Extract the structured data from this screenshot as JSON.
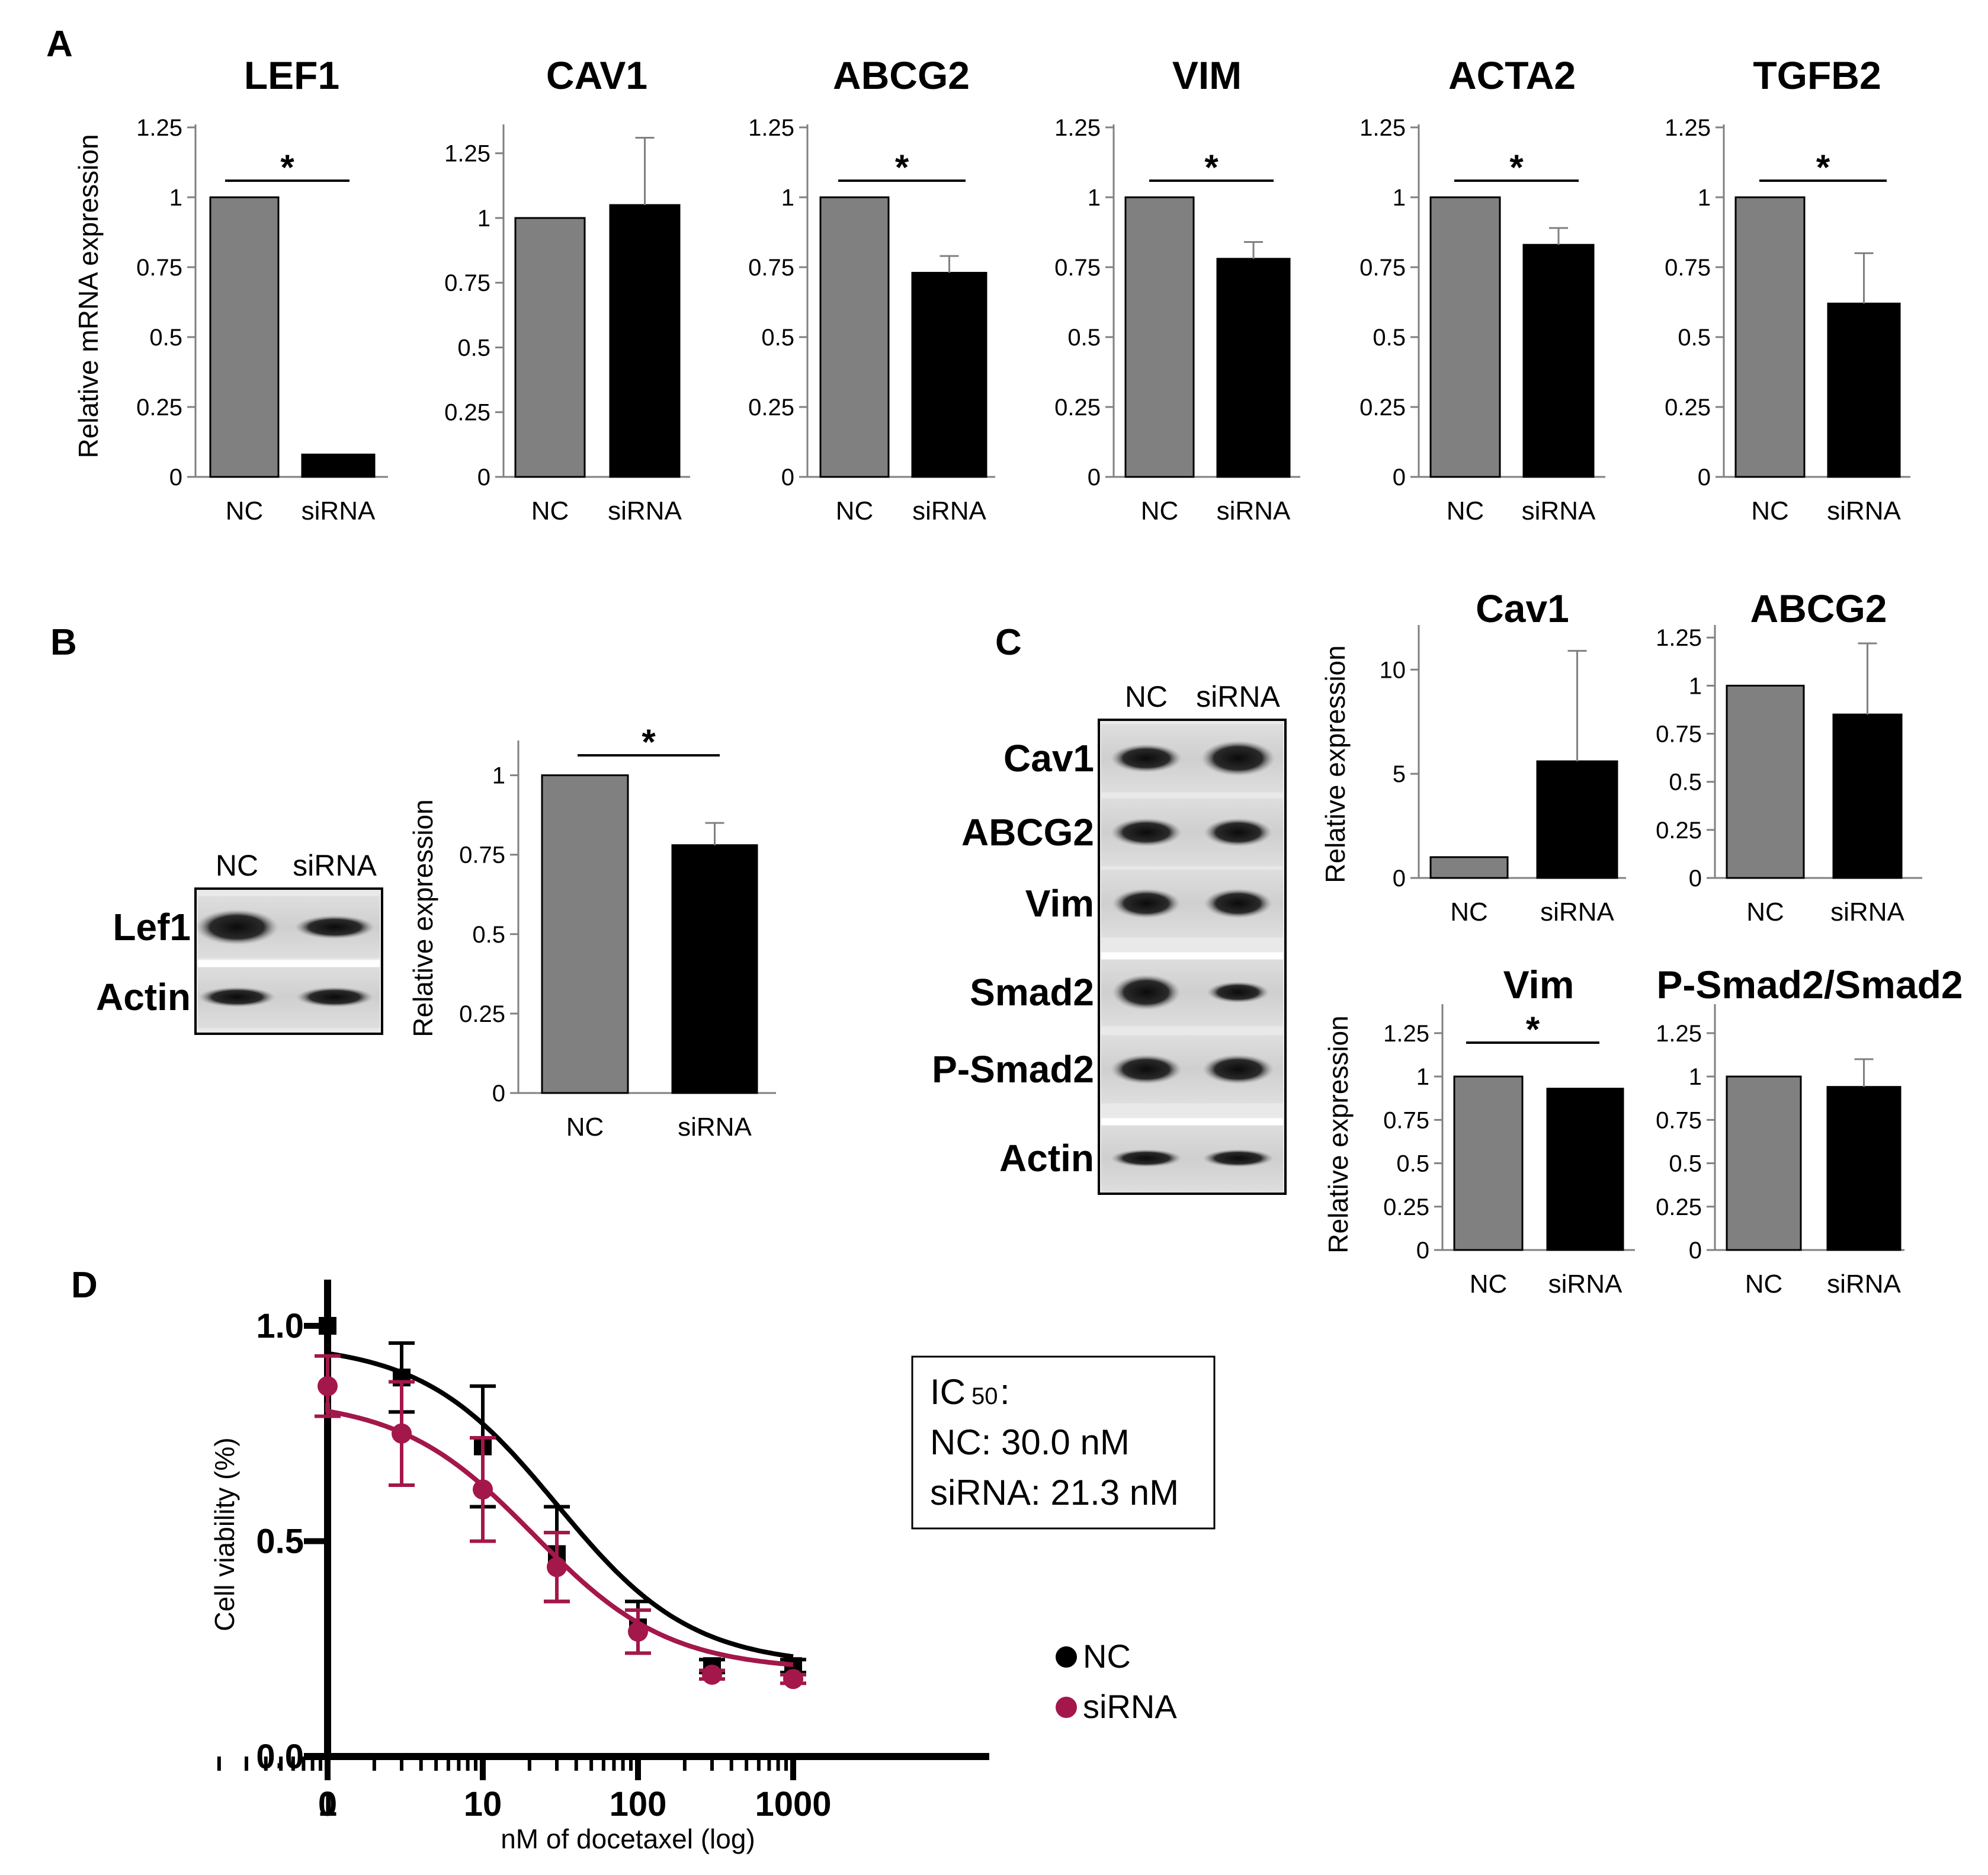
{
  "panels": {
    "A": {
      "letter": "A"
    },
    "B": {
      "letter": "B"
    },
    "C": {
      "letter": "C"
    },
    "D": {
      "letter": "D"
    }
  },
  "colors": {
    "nc": "#808080",
    "sirna": "#000000",
    "sirna_curve": "#a3174a"
  },
  "chart_data": [
    {
      "id": "A-LEF1",
      "panel": "A",
      "type": "bar",
      "title": "LEF1",
      "ylabel": "Relative mRNA expression",
      "categories": [
        "NC",
        "siRNA"
      ],
      "values": [
        1,
        0.08
      ],
      "errors": [
        0,
        0.005
      ],
      "ylim": [
        0,
        1.25
      ],
      "yticks": [
        0,
        0.25,
        0.5,
        0.75,
        1,
        1.25
      ],
      "ytick_labels": [
        "0",
        "0.25",
        "0.5",
        "0.75",
        "1",
        "1.25"
      ],
      "significance": "*"
    },
    {
      "id": "A-CAV1",
      "panel": "A",
      "type": "bar",
      "title": "CAV1",
      "ylabel": "",
      "categories": [
        "NC",
        "siRNA"
      ],
      "values": [
        1,
        1.05
      ],
      "errors": [
        0,
        0.26
      ],
      "ylim": [
        0,
        1.35
      ],
      "yticks": [
        0,
        0.25,
        0.5,
        0.75,
        1,
        1.25
      ],
      "ytick_labels": [
        "0",
        "0.25",
        "0.5",
        "0.75",
        "1",
        "1.25"
      ],
      "significance": ""
    },
    {
      "id": "A-ABCG2",
      "panel": "A",
      "type": "bar",
      "title": "ABCG2",
      "ylabel": "",
      "categories": [
        "NC",
        "siRNA"
      ],
      "values": [
        1,
        0.73
      ],
      "errors": [
        0,
        0.06
      ],
      "ylim": [
        0,
        1.25
      ],
      "yticks": [
        0,
        0.25,
        0.5,
        0.75,
        1,
        1.25
      ],
      "ytick_labels": [
        "0",
        "0.25",
        "0.5",
        "0.75",
        "1",
        "1.25"
      ],
      "significance": "*"
    },
    {
      "id": "A-VIM",
      "panel": "A",
      "type": "bar",
      "title": "VIM",
      "ylabel": "",
      "categories": [
        "NC",
        "siRNA"
      ],
      "values": [
        1,
        0.78
      ],
      "errors": [
        0,
        0.06
      ],
      "ylim": [
        0,
        1.25
      ],
      "yticks": [
        0,
        0.25,
        0.5,
        0.75,
        1,
        1.25
      ],
      "ytick_labels": [
        "0",
        "0.25",
        "0.5",
        "0.75",
        "1",
        "1.25"
      ],
      "significance": "*"
    },
    {
      "id": "A-ACTA2",
      "panel": "A",
      "type": "bar",
      "title": "ACTA2",
      "ylabel": "",
      "categories": [
        "NC",
        "siRNA"
      ],
      "values": [
        1,
        0.83
      ],
      "errors": [
        0,
        0.06
      ],
      "ylim": [
        0,
        1.25
      ],
      "yticks": [
        0,
        0.25,
        0.5,
        0.75,
        1,
        1.25
      ],
      "ytick_labels": [
        "0",
        "0.25",
        "0.5",
        "0.75",
        "1",
        "1.25"
      ],
      "significance": "*"
    },
    {
      "id": "A-TGFB2",
      "panel": "A",
      "type": "bar",
      "title": "TGFB2",
      "ylabel": "",
      "categories": [
        "NC",
        "siRNA"
      ],
      "values": [
        1,
        0.62
      ],
      "errors": [
        0,
        0.18
      ],
      "ylim": [
        0,
        1.25
      ],
      "yticks": [
        0,
        0.25,
        0.5,
        0.75,
        1,
        1.25
      ],
      "ytick_labels": [
        "0",
        "0.25",
        "0.5",
        "0.75",
        "1",
        "1.25"
      ],
      "significance": "*"
    },
    {
      "id": "B-LEF1",
      "panel": "B",
      "type": "bar",
      "title": "",
      "ylabel": "Relative expression",
      "categories": [
        "NC",
        "siRNA"
      ],
      "values": [
        1,
        0.78
      ],
      "errors": [
        0,
        0.07
      ],
      "ylim": [
        0,
        1.1
      ],
      "yticks": [
        0,
        0.25,
        0.5,
        0.75,
        1
      ],
      "ytick_labels": [
        "0",
        "0.25",
        "0.5",
        "0.75",
        "1"
      ],
      "significance": "*"
    },
    {
      "id": "C-Cav1",
      "panel": "C",
      "type": "bar",
      "title": "Cav1",
      "ylabel": "Relative expression",
      "categories": [
        "NC",
        "siRNA"
      ],
      "values": [
        1,
        5.6
      ],
      "errors": [
        0,
        5.3
      ],
      "ylim": [
        0,
        12
      ],
      "yticks": [
        0,
        5,
        10
      ],
      "ytick_labels": [
        "0",
        "5",
        "10"
      ],
      "significance": ""
    },
    {
      "id": "C-ABCG2",
      "panel": "C",
      "type": "bar",
      "title": "ABCG2",
      "ylabel": "",
      "categories": [
        "NC",
        "siRNA"
      ],
      "values": [
        1,
        0.85
      ],
      "errors": [
        0,
        0.37
      ],
      "ylim": [
        0,
        1.3
      ],
      "yticks": [
        0,
        0.25,
        0.5,
        0.75,
        1,
        1.25
      ],
      "ytick_labels": [
        "0",
        "0.25",
        "0.5",
        "0.75",
        "1",
        "1.25"
      ],
      "significance": ""
    },
    {
      "id": "C-Vim",
      "panel": "C",
      "type": "bar",
      "title": "Vim",
      "ylabel": "Relative expression",
      "categories": [
        "NC",
        "siRNA"
      ],
      "values": [
        1,
        0.93
      ],
      "errors": [
        0,
        0.005
      ],
      "ylim": [
        0,
        1.4
      ],
      "yticks": [
        0,
        0.25,
        0.5,
        0.75,
        1,
        1.25
      ],
      "ytick_labels": [
        "0",
        "0.25",
        "0.5",
        "0.75",
        "1",
        "1.25"
      ],
      "significance": "*"
    },
    {
      "id": "C-PSmad2",
      "panel": "C",
      "type": "bar",
      "title": "P-Smad2/Smad2",
      "ylabel": "",
      "categories": [
        "NC",
        "siRNA"
      ],
      "values": [
        1,
        0.94
      ],
      "errors": [
        0,
        0.16
      ],
      "ylim": [
        0,
        1.4
      ],
      "yticks": [
        0,
        0.25,
        0.5,
        0.75,
        1,
        1.25
      ],
      "ytick_labels": [
        "0",
        "0.25",
        "0.5",
        "0.75",
        "1",
        "1.25"
      ],
      "significance": ""
    },
    {
      "id": "D",
      "panel": "D",
      "type": "scatter",
      "title": "",
      "xlabel": "nM of docetaxel (log)",
      "ylabel": "Cell viability (%)",
      "x": [
        0,
        3,
        10,
        30,
        100,
        300,
        1000
      ],
      "x_tick_labels": [
        "0",
        "1",
        "10",
        "100",
        "1000"
      ],
      "y_tick_labels": [
        "0.0",
        "0.5",
        "1.0"
      ],
      "ylim": [
        0,
        1.1
      ],
      "series": [
        {
          "name": "NC",
          "values": [
            1.0,
            0.88,
            0.72,
            0.47,
            0.3,
            0.21,
            0.21
          ],
          "errors": [
            0,
            0.08,
            0.14,
            0.11,
            0.06,
            0.015,
            0.015
          ],
          "fit": {
            "top": 0.96,
            "bottom": 0.21,
            "ic50": 30.0
          }
        },
        {
          "name": "siRNA",
          "values": [
            0.86,
            0.75,
            0.62,
            0.44,
            0.29,
            0.19,
            0.18
          ],
          "errors": [
            0.07,
            0.12,
            0.12,
            0.08,
            0.05,
            0.01,
            0.01
          ],
          "fit": {
            "top": 0.83,
            "bottom": 0.2,
            "ic50": 21.3
          }
        }
      ],
      "ic50_box": {
        "heading_main": "IC",
        "heading_sub": "50",
        "heading_suffix": ":",
        "line1": "NC: 30.0 nM",
        "line2": "siRNA: 21.3 nM"
      }
    }
  ],
  "blots": {
    "B": {
      "columns": [
        "NC",
        "siRNA"
      ],
      "rows": [
        "Lef1",
        "Actin"
      ]
    },
    "C": {
      "columns": [
        "NC",
        "siRNA"
      ],
      "rows": [
        "Cav1",
        "ABCG2",
        "Vim",
        "Smad2",
        "P-Smad2",
        "Actin"
      ]
    }
  }
}
